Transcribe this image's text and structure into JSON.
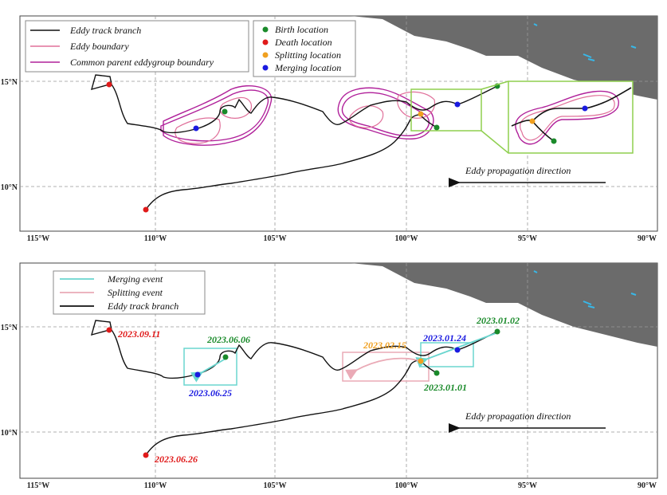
{
  "colors": {
    "track": "#111111",
    "eddy_boundary": "#e0709a",
    "parent_boundary": "#b0209a",
    "birth": "#1a8a2a",
    "death": "#e01a1a",
    "splitting": "#f0a020",
    "merging": "#1a1ae0",
    "merging_event": "#6ad6cf",
    "splitting_event": "#eaaab6",
    "inset_box": "#8fcf4f",
    "land": "#6b6b6b",
    "water_patch": "#38b8e8"
  },
  "axes": {
    "x_ticks": [
      "115°W",
      "110°W",
      "105°W",
      "100°W",
      "95°W",
      "90°W"
    ],
    "y_ticks": [
      "15°N",
      "10°N"
    ]
  },
  "top_panel": {
    "legend_left": [
      {
        "label": "Eddy track branch",
        "icon": "black-line"
      },
      {
        "label": "Eddy boundary",
        "icon": "pink-line"
      },
      {
        "label": "Common parent eddygroup boundary",
        "icon": "magenta-line"
      }
    ],
    "legend_right": [
      {
        "label": "Birth location",
        "icon": "green-dot"
      },
      {
        "label": "Death location",
        "icon": "red-dot"
      },
      {
        "label": "Splitting location",
        "icon": "orange-dot"
      },
      {
        "label": "Merging location",
        "icon": "blue-dot"
      }
    ],
    "direction_text": "Eddy propagation direction"
  },
  "bottom_panel": {
    "legend": [
      {
        "label": "Merging event",
        "icon": "cyan-arrow"
      },
      {
        "label": "Splitting event",
        "icon": "pink-arrow"
      },
      {
        "label": "Eddy track branch",
        "icon": "black-line"
      }
    ],
    "dates": {
      "death_1": "2023.09.11",
      "death_2": "2023.06.26",
      "birth_1": "2023.06.06",
      "merge_1": "2023.06.25",
      "split_1": "2023.02.15",
      "merge_2": "2023.01.24",
      "birth_2": "2023.01.02",
      "birth_3": "2023.01.01"
    },
    "direction_text": "Eddy propagation direction"
  }
}
